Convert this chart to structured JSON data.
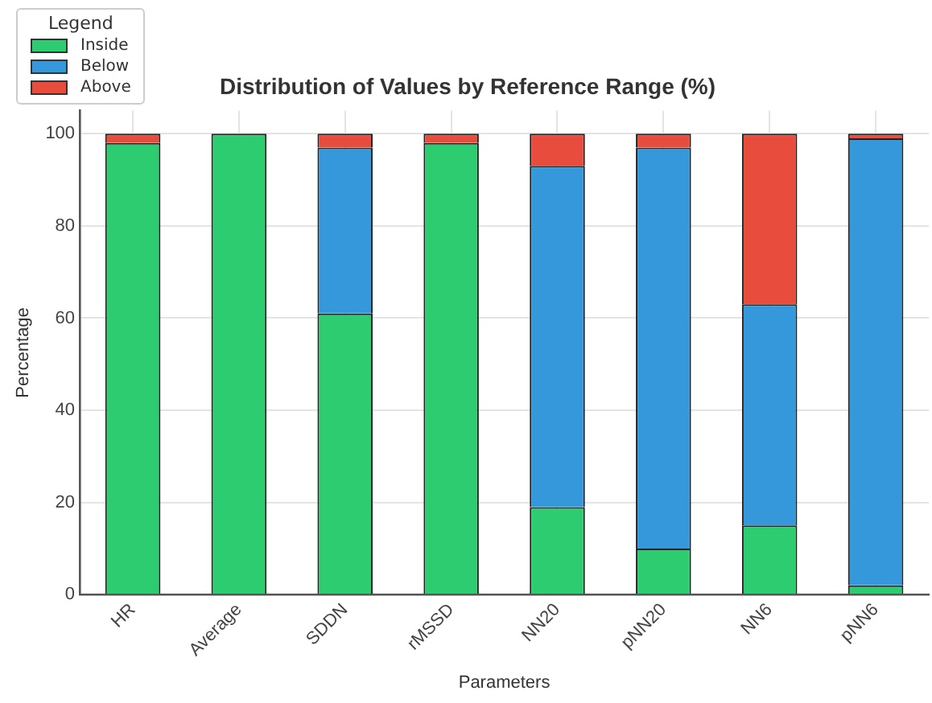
{
  "chart_data": {
    "type": "bar",
    "title": "Distribution of Values by Reference Range (%)",
    "xlabel": "Parameters",
    "ylabel": "Percentage",
    "legend_title": "Legend",
    "categories": [
      "HR",
      "Average",
      "SDDN",
      "rMSSD",
      "NN20",
      "pNN20",
      "NN6",
      "pNN6"
    ],
    "stacked": true,
    "series": [
      {
        "name": "Inside",
        "color": "#2ecc71",
        "values": [
          98,
          100,
          61,
          98,
          19,
          10,
          15,
          2
        ]
      },
      {
        "name": "Below",
        "color": "#3498db",
        "values": [
          0,
          0,
          36,
          0,
          74,
          87,
          48,
          97
        ]
      },
      {
        "name": "Above",
        "color": "#e74c3c",
        "values": [
          2,
          0,
          3,
          2,
          7,
          3,
          37,
          1
        ]
      }
    ],
    "ylim": [
      0,
      105
    ],
    "yticks": [
      0,
      20,
      40,
      60,
      80,
      100
    ],
    "grid": true,
    "legend": "top left"
  }
}
